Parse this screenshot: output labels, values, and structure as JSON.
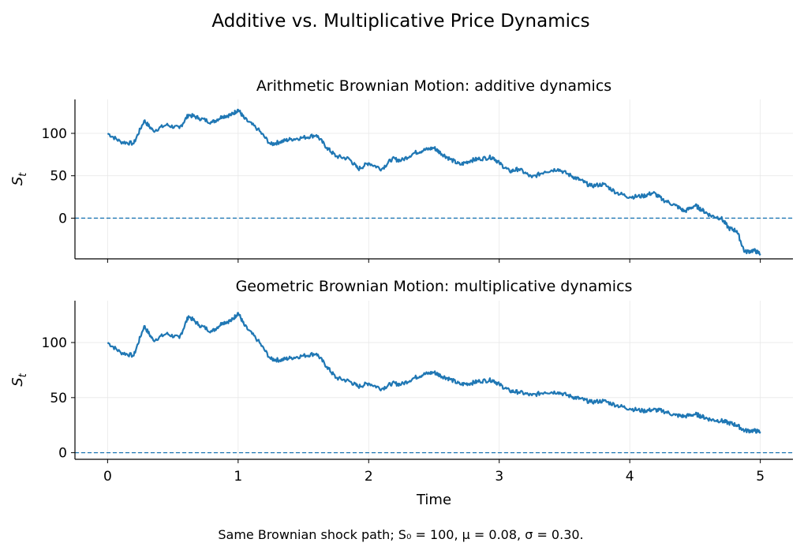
{
  "figure": {
    "title": "Additive vs. Multiplicative Price Dynamics",
    "caption": "Same Brownian shock path; S₀ = 100, μ = 0.08, σ = 0.30.",
    "colors": {
      "series": "#1f77b4",
      "zero_line": "#1f77b4",
      "grid": "#e8e8e8",
      "axis": "#000000"
    }
  },
  "chart_data": [
    {
      "type": "line",
      "title": "Arithmetic Brownian Motion: additive dynamics",
      "xlabel": "",
      "ylabel": "S_t",
      "xlim": [
        -0.25,
        5.25
      ],
      "ylim": [
        -48,
        140
      ],
      "xticks": [
        0,
        1,
        2,
        3,
        4,
        5
      ],
      "yticks": [
        0,
        50,
        100
      ],
      "ytick_labels": [
        "0",
        "50",
        "100"
      ],
      "grid": true,
      "reference_line": {
        "y": 0,
        "style": "dashed"
      },
      "series": [
        {
          "x": [
            0,
            0.1,
            0.2,
            0.28,
            0.35,
            0.45,
            0.55,
            0.62,
            0.7,
            0.8,
            0.88,
            0.95,
            1.0,
            1.05,
            1.15,
            1.25,
            1.32,
            1.4,
            1.5,
            1.6,
            1.68,
            1.75,
            1.85,
            1.92,
            2.0,
            2.1,
            2.18,
            2.25,
            2.35,
            2.42,
            2.5,
            2.55,
            2.62,
            2.7,
            2.78,
            2.85,
            2.95,
            3.0,
            3.08,
            3.15,
            3.25,
            3.35,
            3.45,
            3.55,
            3.62,
            3.7,
            3.8,
            3.9,
            4.0,
            4.1,
            4.18,
            4.25,
            4.35,
            4.42,
            4.5,
            4.55,
            4.62,
            4.7,
            4.76,
            4.82,
            4.88,
            4.95,
            5.0
          ],
          "values": [
            100,
            90,
            88,
            115,
            103,
            110,
            106,
            122,
            118,
            113,
            120,
            122,
            128,
            117,
            105,
            87,
            90,
            93,
            95,
            98,
            83,
            73,
            70,
            58,
            65,
            58,
            70,
            68,
            77,
            80,
            83,
            77,
            70,
            63,
            68,
            70,
            72,
            65,
            55,
            58,
            48,
            55,
            58,
            50,
            45,
            38,
            40,
            30,
            25,
            26,
            30,
            22,
            15,
            8,
            15,
            10,
            3,
            0,
            -12,
            -15,
            -40,
            -38,
            -42
          ]
        }
      ]
    },
    {
      "type": "line",
      "title": "Geometric Brownian Motion: multiplicative dynamics",
      "xlabel": "Time",
      "ylabel": "S_t",
      "xlim": [
        -0.25,
        5.25
      ],
      "ylim": [
        -6,
        138
      ],
      "xticks": [
        0,
        1,
        2,
        3,
        4,
        5
      ],
      "xtick_labels": [
        "0",
        "1",
        "2",
        "3",
        "4",
        "5"
      ],
      "yticks": [
        0,
        50,
        100
      ],
      "ytick_labels": [
        "0",
        "50",
        "100"
      ],
      "grid": true,
      "reference_line": {
        "y": 0,
        "style": "dashed"
      },
      "series": [
        {
          "x": [
            0,
            0.1,
            0.2,
            0.28,
            0.35,
            0.45,
            0.55,
            0.62,
            0.7,
            0.8,
            0.88,
            0.95,
            1.0,
            1.05,
            1.15,
            1.25,
            1.32,
            1.4,
            1.5,
            1.6,
            1.68,
            1.75,
            1.85,
            1.92,
            2.0,
            2.1,
            2.18,
            2.25,
            2.35,
            2.42,
            2.5,
            2.55,
            2.62,
            2.7,
            2.78,
            2.85,
            2.95,
            3.0,
            3.08,
            3.15,
            3.25,
            3.35,
            3.45,
            3.55,
            3.62,
            3.7,
            3.8,
            3.9,
            4.0,
            4.1,
            4.18,
            4.25,
            4.35,
            4.42,
            4.5,
            4.55,
            4.62,
            4.7,
            4.76,
            4.82,
            4.88,
            4.95,
            5.0
          ],
          "values": [
            100,
            91,
            88,
            115,
            102,
            108,
            104,
            124,
            116,
            110,
            118,
            120,
            127,
            115,
            102,
            85,
            84,
            86,
            88,
            90,
            78,
            68,
            65,
            60,
            63,
            58,
            63,
            62,
            68,
            71,
            73,
            70,
            67,
            62,
            63,
            65,
            66,
            62,
            56,
            55,
            52,
            55,
            55,
            51,
            49,
            46,
            47,
            43,
            40,
            38,
            39,
            38,
            34,
            33,
            35,
            33,
            30,
            29,
            27,
            25,
            20,
            20,
            19
          ]
        }
      ]
    }
  ]
}
